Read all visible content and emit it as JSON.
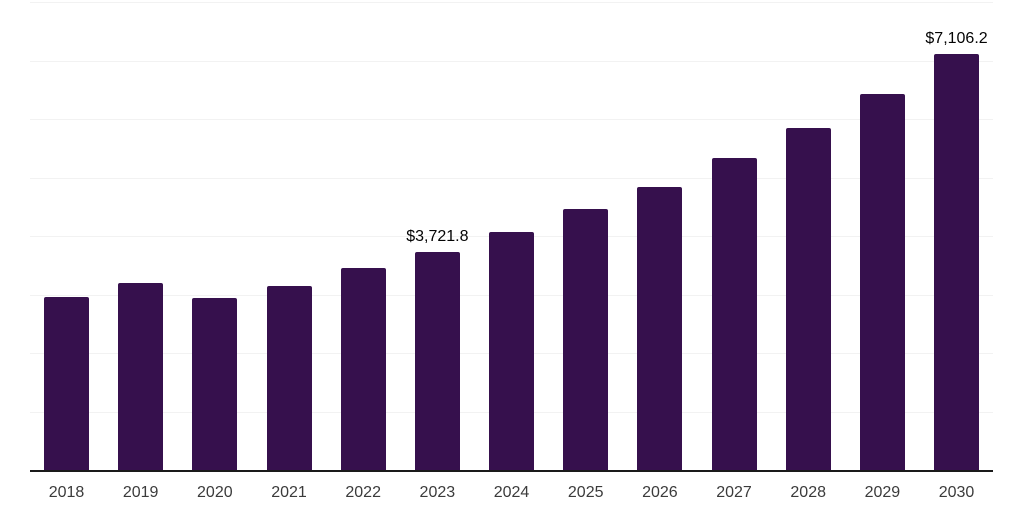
{
  "chart_data": {
    "type": "bar",
    "title": "",
    "xlabel": "",
    "ylabel": "",
    "categories": [
      "2018",
      "2019",
      "2020",
      "2021",
      "2022",
      "2023",
      "2024",
      "2025",
      "2026",
      "2027",
      "2028",
      "2029",
      "2030"
    ],
    "values": [
      2950,
      3195,
      2935,
      3140,
      3445,
      3721.8,
      4065,
      4455,
      4845,
      5335,
      5840,
      6430,
      7106.2
    ],
    "data_labels": [
      "",
      "",
      "",
      "",
      "",
      "$3,721.8",
      "",
      "",
      "",
      "",
      "",
      "",
      "$7,106.2"
    ],
    "ylim": [
      0,
      8000
    ],
    "gridline_interval": 1000,
    "grid": true,
    "legend": false,
    "y_axis_tick_labels_visible": false,
    "colors": {
      "bar": "#36104D",
      "axis_line": "#1a1a1a",
      "gridline": "#f2f2f2",
      "data_label": "#040404",
      "x_tick_label": "#3b3b3b",
      "background": "#ffffff"
    }
  }
}
